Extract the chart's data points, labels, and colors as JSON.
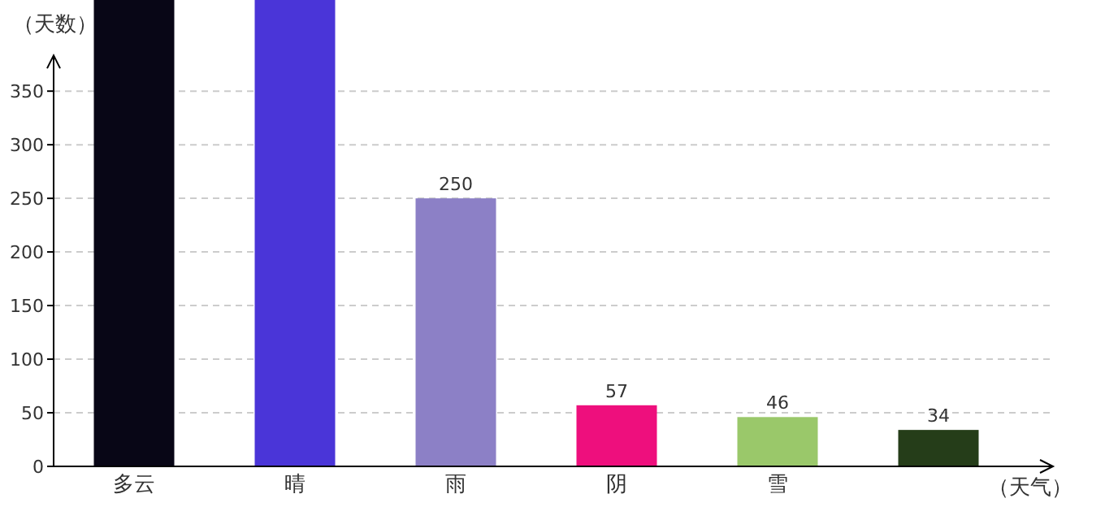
{
  "chart_data": {
    "type": "bar",
    "xlabel": "（天气）",
    "ylabel": "（天数）",
    "categories": [
      "多云",
      "晴",
      "雨",
      "阴",
      "雪",
      null
    ],
    "values": [
      435,
      435,
      250,
      57,
      46,
      34
    ],
    "colors": [
      "#080616",
      "#4a35d8",
      "#8c80c6",
      "#ee0f7d",
      "#9ac86a",
      "#253d19"
    ],
    "value_labels": [
      null,
      null,
      "250",
      "57",
      "46",
      "34"
    ],
    "ylim": [
      0,
      435
    ],
    "yticks": [
      0,
      50,
      100,
      150,
      200,
      250,
      300,
      350
    ],
    "grid": "y"
  }
}
